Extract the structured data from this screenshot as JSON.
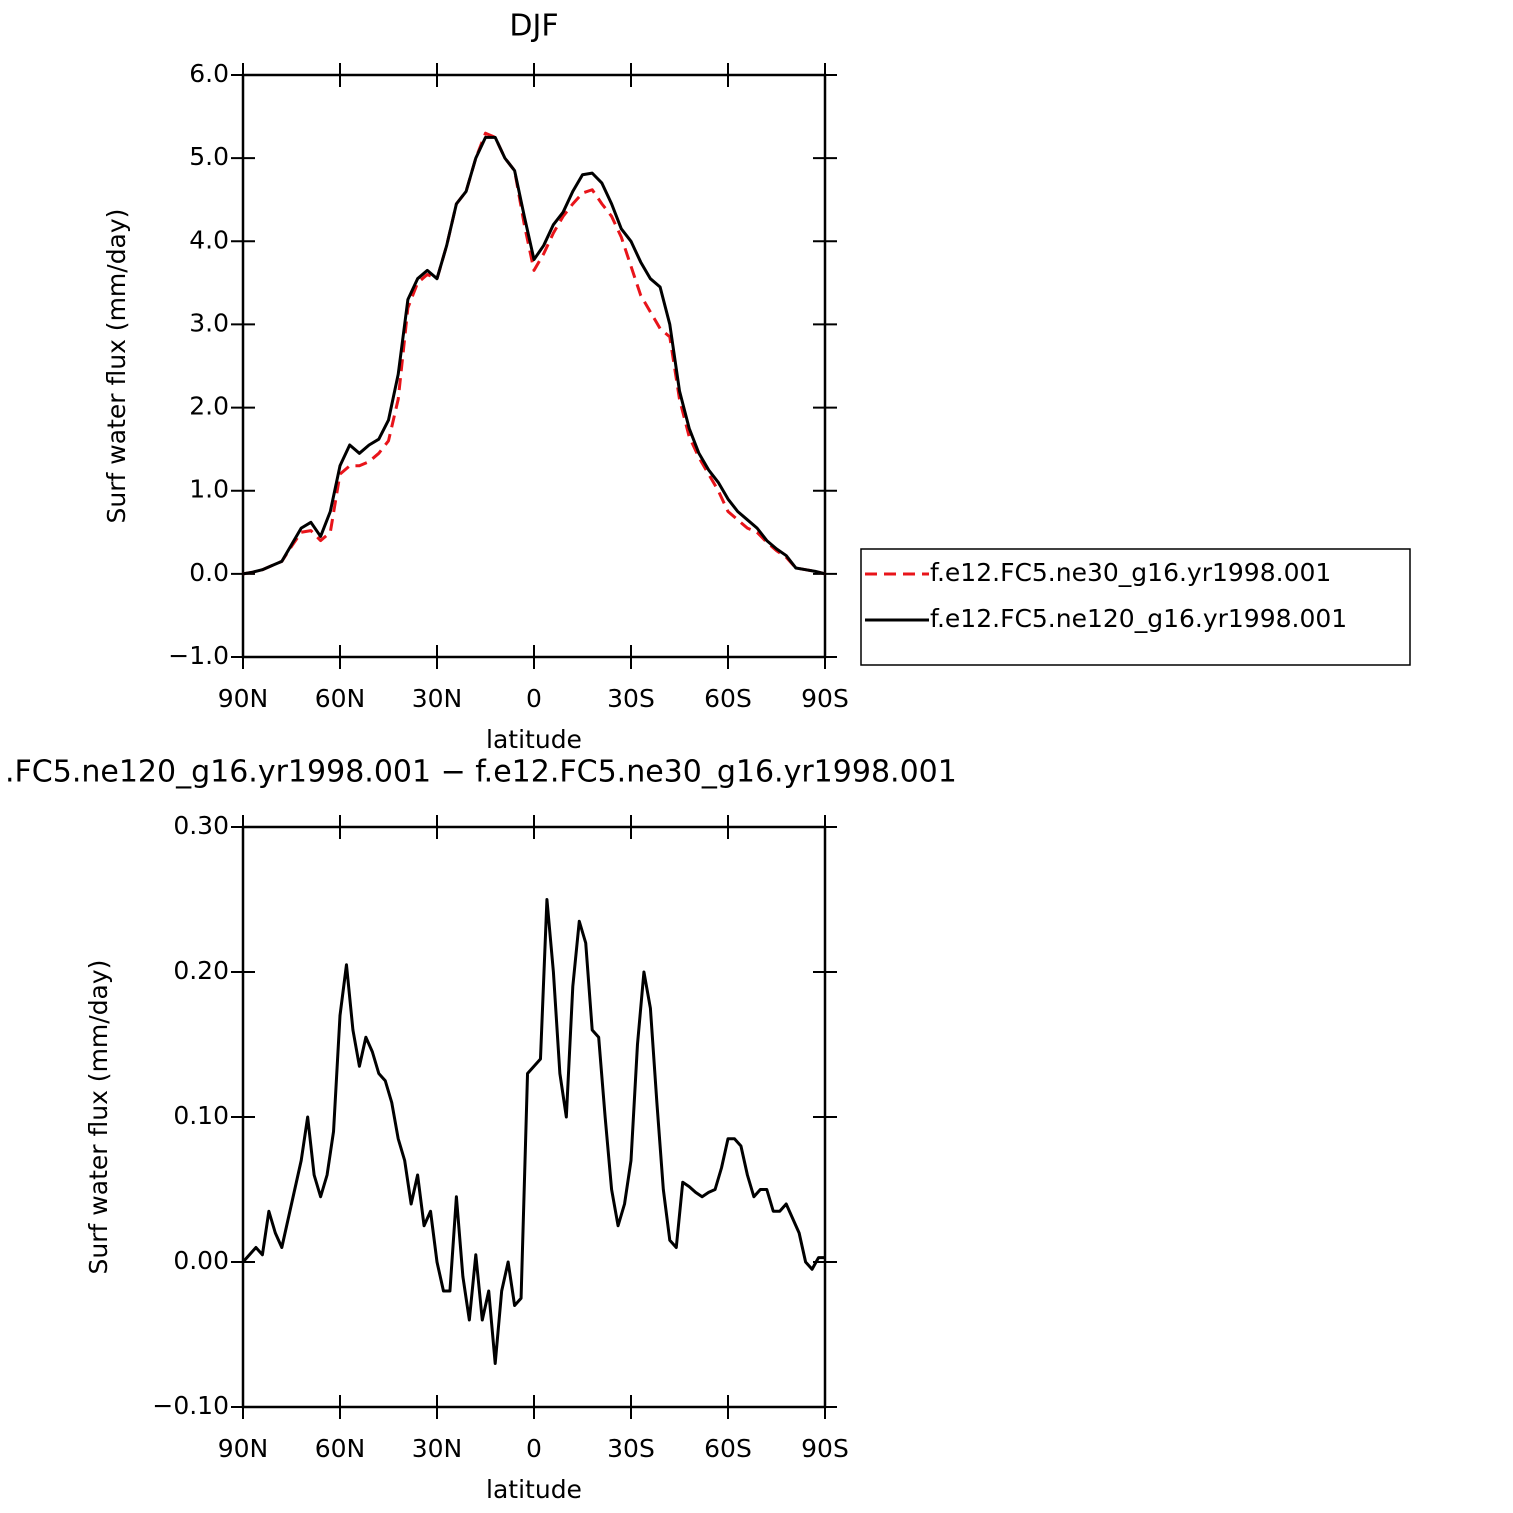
{
  "chart_data": [
    {
      "type": "line",
      "title": "DJF",
      "xlabel": "latitude",
      "ylabel": "Surf water flux (mm/day)",
      "xlim": [
        90,
        -90
      ],
      "ylim": [
        -1,
        6
      ],
      "xticks": [
        {
          "value": 90,
          "label": "90N"
        },
        {
          "value": 60,
          "label": "60N"
        },
        {
          "value": 30,
          "label": "30N"
        },
        0,
        {
          "value": -30,
          "label": "30S"
        },
        {
          "value": -60,
          "label": "60S"
        },
        {
          "value": -90,
          "label": "90S"
        }
      ],
      "yticks": [
        {
          "value": -1,
          "label": "−1.0"
        },
        {
          "value": 0,
          "label": "0.0"
        },
        {
          "value": 1,
          "label": "1.0"
        },
        {
          "value": 2,
          "label": "2.0"
        },
        {
          "value": 3,
          "label": "3.0"
        },
        {
          "value": 4,
          "label": "4.0"
        },
        {
          "value": 5,
          "label": "5.0"
        },
        {
          "value": 6,
          "label": "6.0"
        }
      ],
      "legend": "right",
      "x": [
        90,
        87,
        84,
        81,
        78,
        75,
        72,
        69,
        66,
        63,
        60,
        57,
        54,
        51,
        48,
        45,
        42,
        39,
        36,
        33,
        30,
        27,
        24,
        21,
        18,
        15,
        12,
        9,
        6,
        3,
        0,
        -3,
        -6,
        -9,
        -12,
        -15,
        -18,
        -21,
        -24,
        -27,
        -30,
        -33,
        -36,
        -39,
        -42,
        -45,
        -48,
        -51,
        -54,
        -57,
        -60,
        -63,
        -66,
        -69,
        -72,
        -75,
        -78,
        -81,
        -84,
        -87,
        -90
      ],
      "series": [
        {
          "name": "f.e12.FC5.ne30_g16.yr1998.001",
          "color": "#e8141a",
          "linestyle": "dashed",
          "values": [
            0.0,
            0.02,
            0.05,
            0.1,
            0.15,
            0.33,
            0.5,
            0.52,
            0.4,
            0.5,
            1.2,
            1.3,
            1.3,
            1.35,
            1.45,
            1.6,
            2.1,
            3.2,
            3.5,
            3.6,
            3.55,
            3.95,
            4.45,
            4.6,
            5.0,
            5.3,
            5.25,
            5.0,
            4.85,
            4.2,
            3.65,
            3.85,
            4.1,
            4.3,
            4.45,
            4.58,
            4.62,
            4.45,
            4.3,
            4.05,
            3.7,
            3.35,
            3.15,
            2.95,
            2.85,
            2.1,
            1.65,
            1.4,
            1.2,
            1.0,
            0.75,
            0.65,
            0.55,
            0.5,
            0.38,
            0.28,
            0.2,
            0.07,
            0.05,
            0.03,
            0.0
          ]
        },
        {
          "name": "f.e12.FC5.ne120_g16.yr1998.001",
          "color": "#000000",
          "linestyle": "solid",
          "values": [
            0.0,
            0.02,
            0.05,
            0.1,
            0.15,
            0.35,
            0.55,
            0.62,
            0.45,
            0.75,
            1.3,
            1.55,
            1.45,
            1.55,
            1.62,
            1.85,
            2.4,
            3.3,
            3.55,
            3.65,
            3.55,
            3.95,
            4.45,
            4.6,
            5.0,
            5.25,
            5.25,
            5.0,
            4.85,
            4.3,
            3.78,
            3.95,
            4.2,
            4.35,
            4.6,
            4.8,
            4.82,
            4.7,
            4.45,
            4.15,
            4.0,
            3.75,
            3.55,
            3.45,
            3.0,
            2.2,
            1.75,
            1.45,
            1.25,
            1.1,
            0.9,
            0.75,
            0.65,
            0.55,
            0.4,
            0.3,
            0.22,
            0.07,
            0.05,
            0.03,
            0.0
          ]
        }
      ]
    },
    {
      "type": "line",
      "title": ".FC5.ne120_g16.yr1998.001 − f.e12.FC5.ne30_g16.yr1998.001",
      "xlabel": "latitude",
      "ylabel": "Surf water flux (mm/day)",
      "xlim": [
        90,
        -90
      ],
      "ylim": [
        -0.1,
        0.3
      ],
      "xticks": [
        {
          "value": 90,
          "label": "90N"
        },
        {
          "value": 60,
          "label": "60N"
        },
        {
          "value": 30,
          "label": "30N"
        },
        0,
        {
          "value": -30,
          "label": "30S"
        },
        {
          "value": -60,
          "label": "60S"
        },
        {
          "value": -90,
          "label": "90S"
        }
      ],
      "yticks": [
        {
          "value": -0.1,
          "label": "−0.10"
        },
        {
          "value": 0,
          "label": "0.00"
        },
        {
          "value": 0.1,
          "label": "0.10"
        },
        {
          "value": 0.2,
          "label": "0.20"
        },
        {
          "value": 0.3,
          "label": "0.30"
        }
      ],
      "x": [
        90,
        88,
        86,
        84,
        82,
        80,
        78,
        76,
        74,
        72,
        70,
        68,
        66,
        64,
        62,
        60,
        58,
        56,
        54,
        52,
        50,
        48,
        46,
        44,
        42,
        40,
        38,
        36,
        34,
        32,
        30,
        28,
        26,
        24,
        22,
        20,
        18,
        16,
        14,
        12,
        10,
        8,
        6,
        4,
        2,
        0,
        -2,
        -4,
        -6,
        -8,
        -10,
        -12,
        -14,
        -16,
        -18,
        -20,
        -22,
        -24,
        -26,
        -28,
        -30,
        -32,
        -34,
        -36,
        -38,
        -40,
        -42,
        -44,
        -46,
        -48,
        -50,
        -52,
        -54,
        -56,
        -58,
        -60,
        -62,
        -64,
        -66,
        -68,
        -70,
        -72,
        -74,
        -76,
        -78,
        -80,
        -82,
        -84,
        -86,
        -88,
        -90
      ],
      "series": [
        {
          "color": "#000000",
          "linestyle": "solid",
          "values": [
            0.0,
            0.005,
            0.01,
            0.005,
            0.035,
            0.02,
            0.01,
            0.03,
            0.05,
            0.07,
            0.1,
            0.06,
            0.045,
            0.06,
            0.09,
            0.17,
            0.205,
            0.16,
            0.135,
            0.155,
            0.145,
            0.13,
            0.125,
            0.11,
            0.085,
            0.07,
            0.04,
            0.06,
            0.025,
            0.035,
            0.0,
            -0.02,
            -0.02,
            0.045,
            -0.01,
            -0.04,
            0.005,
            -0.04,
            -0.02,
            -0.07,
            -0.02,
            0.0,
            -0.03,
            -0.025,
            0.13,
            0.135,
            0.14,
            0.25,
            0.2,
            0.13,
            0.1,
            0.19,
            0.235,
            0.22,
            0.16,
            0.155,
            0.1,
            0.05,
            0.025,
            0.04,
            0.07,
            0.15,
            0.2,
            0.175,
            0.11,
            0.05,
            0.015,
            0.01,
            0.055,
            0.052,
            0.048,
            0.045,
            0.048,
            0.05,
            0.065,
            0.085,
            0.085,
            0.08,
            0.06,
            0.045,
            0.05,
            0.05,
            0.035,
            0.035,
            0.04,
            0.03,
            0.02,
            0.0,
            -0.005,
            0.003,
            0.003
          ]
        }
      ]
    }
  ]
}
